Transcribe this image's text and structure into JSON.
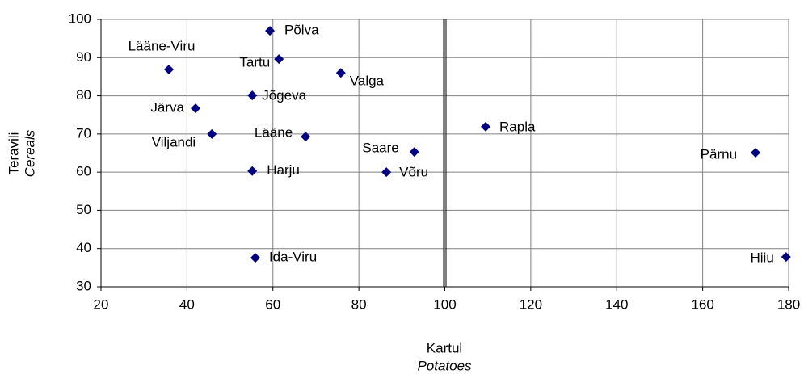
{
  "chart_data": {
    "type": "scatter",
    "ylabel": "Teravili",
    "ylabel_sub": "Cereals",
    "xlabel": "Kartul",
    "xlabel_sub": "Potatoes",
    "labels": [
      "Lääne-Viru",
      "Põlva",
      "Tartu",
      "Valga",
      "Jõgeva",
      "Järva",
      "Viljandi",
      "Lääne",
      "Saare",
      "Rapla",
      "Pärnu",
      "Harju",
      "Võru",
      "Ida-Viru",
      "Hiiu"
    ],
    "x": [
      35.8,
      59.3,
      61.4,
      75.8,
      55.2,
      42.0,
      45.8,
      67.6,
      92.9,
      109.5,
      172.3,
      55.2,
      86.4,
      55.9,
      179.4
    ],
    "values": [
      86.9,
      97.0,
      89.6,
      86.0,
      80.1,
      76.7,
      70.0,
      69.3,
      65.3,
      71.9,
      65.1,
      60.3,
      60.0,
      37.6,
      37.8
    ],
    "color": "#000080",
    "xlim": [
      20,
      180
    ],
    "xticks": [
      20,
      40,
      60,
      80,
      100,
      120,
      140,
      160,
      180
    ],
    "ylim": [
      30,
      100
    ],
    "yticks": [
      30,
      40,
      50,
      60,
      70,
      80,
      90,
      100
    ],
    "vline": 100,
    "grid": true
  }
}
